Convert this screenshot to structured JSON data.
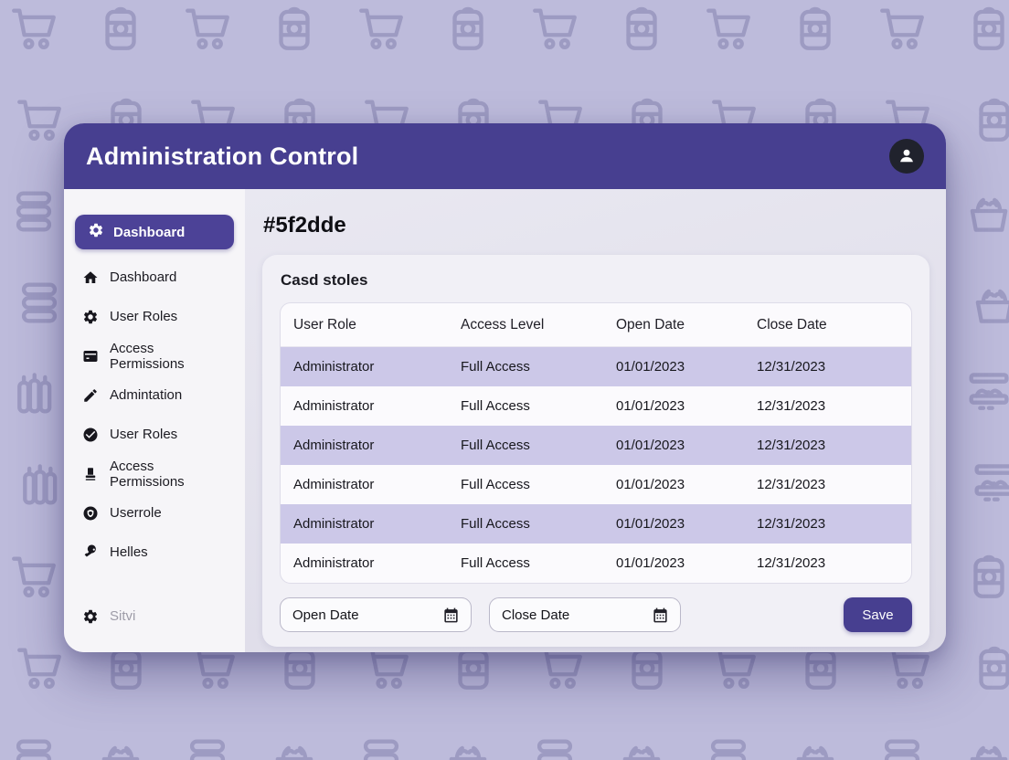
{
  "header": {
    "title": "Administration Control"
  },
  "sidebar": {
    "selected": {
      "label": "Dashboard",
      "icon": "gear-icon"
    },
    "items": [
      {
        "label": "Dashboard",
        "icon": "home-icon"
      },
      {
        "label": "User Roles",
        "icon": "gear-icon"
      },
      {
        "label": "Access Permissions",
        "icon": "credit-card-icon"
      },
      {
        "label": "Admintation",
        "icon": "pencil-icon"
      },
      {
        "label": "User Roles",
        "icon": "check-circle-icon"
      },
      {
        "label": "Access Permissions",
        "icon": "stamp-icon"
      },
      {
        "label": "Userrole",
        "icon": "shield-circle-icon"
      },
      {
        "label": "Helles",
        "icon": "key-icon"
      }
    ],
    "footer_item": {
      "label": "Sitvi",
      "icon": "gear-icon"
    }
  },
  "main": {
    "title": "#5f2dde",
    "card": {
      "title": "Casd stoles",
      "table": {
        "columns": [
          "User Role",
          "Access Level",
          "Open Date",
          "Close Date"
        ],
        "rows": [
          {
            "user_role": "Administrator",
            "access_level": "Full Access",
            "open_date": "01/01/2023",
            "close_date": "12/31/2023"
          },
          {
            "user_role": "Administrator",
            "access_level": "Full Access",
            "open_date": "01/01/2023",
            "close_date": "12/31/2023"
          },
          {
            "user_role": "Administrator",
            "access_level": "Full Access",
            "open_date": "01/01/2023",
            "close_date": "12/31/2023"
          },
          {
            "user_role": "Administrator",
            "access_level": "Full Access",
            "open_date": "01/01/2023",
            "close_date": "12/31/2023"
          },
          {
            "user_role": "Administrator",
            "access_level": "Full Access",
            "open_date": "01/01/2023",
            "close_date": "12/31/2023"
          },
          {
            "user_role": "Administrator",
            "access_level": "Full Access",
            "open_date": "01/01/2023",
            "close_date": "12/31/2023"
          }
        ]
      },
      "footer": {
        "open_date_label": "Open Date",
        "close_date_label": "Close Date",
        "save_label": "Save"
      }
    }
  },
  "colors": {
    "header_purple": "#473f90",
    "accent_purple": "#4c4297",
    "row_stripe": "#ccc8e8",
    "page_background": "#bdbbdb"
  }
}
